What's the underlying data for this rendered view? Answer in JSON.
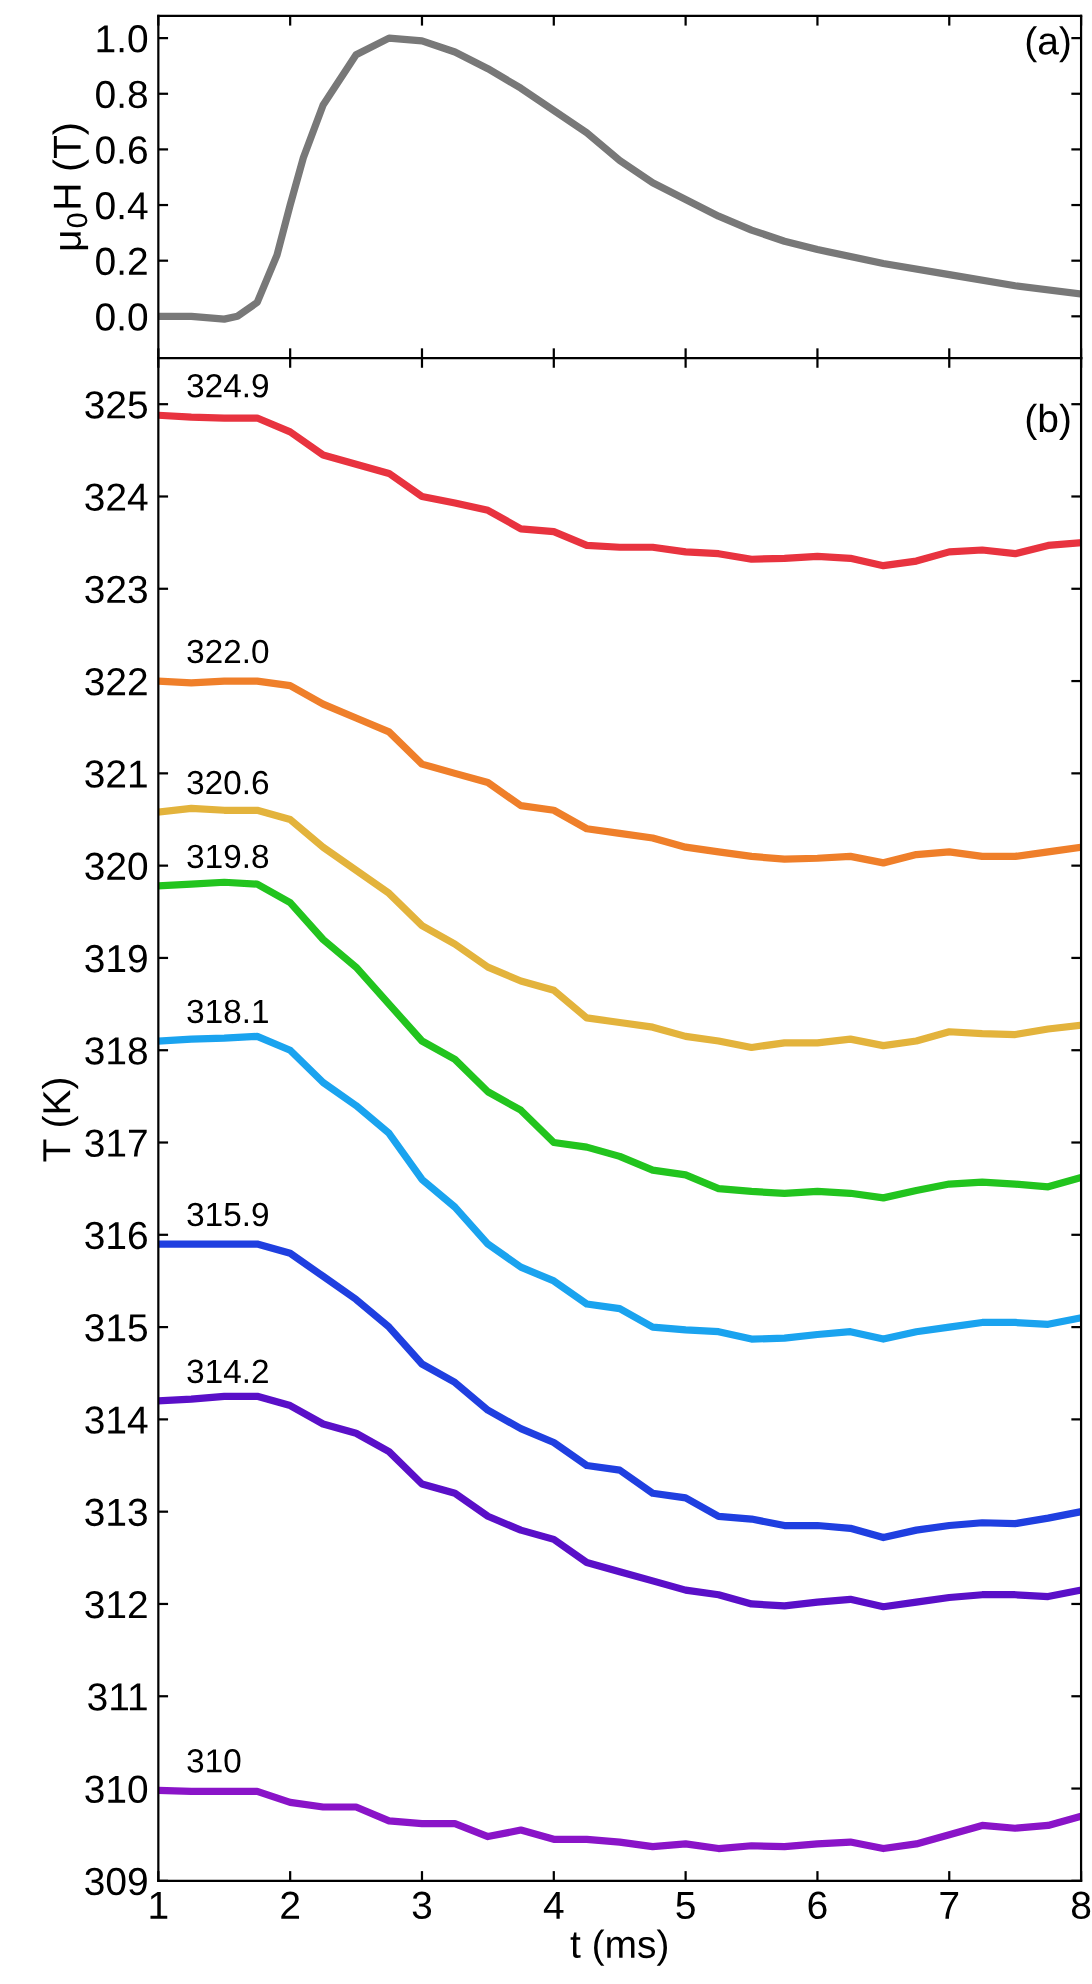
{
  "chart_data": [
    {
      "type": "line",
      "ylabel": "μ$_{0}$H (T)",
      "annotations": [
        "(a)"
      ],
      "xlim": [
        1,
        8
      ],
      "xticks": [
        1,
        2,
        3,
        4,
        5,
        6,
        7,
        8
      ],
      "ylim": [
        -0.15,
        1.08
      ],
      "yticks": [
        {
          "value": 0,
          "label": "0.0"
        },
        {
          "value": 0.2,
          "label": "0.2"
        },
        {
          "value": 0.4,
          "label": "0.4"
        },
        {
          "value": 0.6,
          "label": "0.6"
        },
        {
          "value": 0.8,
          "label": "0.8"
        },
        {
          "value": 1.0,
          "label": "1.0"
        }
      ],
      "tick_labels": "y",
      "legend": false,
      "grid": false,
      "series": [
        {
          "color": "#787878",
          "x": [
            1,
            1.25,
            1.5,
            1.6,
            1.75,
            1.9,
            2.0,
            2.1,
            2.25,
            2.5,
            2.75,
            3.0,
            3.25,
            3.5,
            3.75,
            4.0,
            4.25,
            4.5,
            4.75,
            5.0,
            5.25,
            5.5,
            5.75,
            6.0,
            6.5,
            7.0,
            7.5,
            8.0
          ],
          "values": [
            0.0,
            0.0,
            -0.01,
            0.0,
            0.05,
            0.22,
            0.4,
            0.57,
            0.76,
            0.94,
            1.0,
            0.99,
            0.95,
            0.89,
            0.82,
            0.74,
            0.66,
            0.56,
            0.48,
            0.42,
            0.36,
            0.31,
            0.27,
            0.24,
            0.19,
            0.15,
            0.11,
            0.08
          ]
        }
      ]
    },
    {
      "type": "line",
      "xlabel": "t (ms)",
      "ylabel": "T (K)",
      "annotations": [
        "(b)"
      ],
      "xlim": [
        1,
        8
      ],
      "xticks": [
        1,
        2,
        3,
        4,
        5,
        6,
        7,
        8
      ],
      "ylim": [
        309,
        325.5
      ],
      "yticks": [
        309,
        310,
        311,
        312,
        313,
        314,
        315,
        316,
        317,
        318,
        319,
        320,
        321,
        322,
        323,
        324,
        325
      ],
      "legend": false,
      "grid": false,
      "x": [
        1,
        1.25,
        1.5,
        1.75,
        2,
        2.25,
        2.5,
        2.75,
        3,
        3.25,
        3.5,
        3.75,
        4,
        4.25,
        4.5,
        4.75,
        5,
        5.25,
        5.5,
        5.75,
        6,
        6.25,
        6.5,
        6.75,
        7,
        7.25,
        7.5,
        7.75,
        8
      ],
      "series": [
        {
          "name": "324.9",
          "color": "#e8333f",
          "values": [
            324.88,
            324.86,
            324.85,
            324.85,
            324.7,
            324.45,
            324.35,
            324.25,
            324.0,
            323.93,
            323.85,
            323.65,
            323.62,
            323.47,
            323.45,
            323.45,
            323.4,
            323.38,
            323.32,
            323.33,
            323.35,
            323.33,
            323.25,
            323.3,
            323.4,
            323.42,
            323.38,
            323.47,
            323.5
          ]
        },
        {
          "name": "322.0",
          "color": "#ef7f2a",
          "values": [
            322.0,
            321.98,
            322.0,
            322.0,
            321.95,
            321.75,
            321.6,
            321.45,
            321.1,
            321.0,
            320.9,
            320.65,
            320.6,
            320.4,
            320.35,
            320.3,
            320.2,
            320.15,
            320.1,
            320.07,
            320.08,
            320.1,
            320.03,
            320.12,
            320.15,
            320.1,
            320.1,
            320.15,
            320.2
          ]
        },
        {
          "name": "320.6",
          "color": "#e3b33c",
          "values": [
            320.58,
            320.62,
            320.6,
            320.6,
            320.5,
            320.2,
            319.95,
            319.7,
            319.35,
            319.15,
            318.9,
            318.75,
            318.65,
            318.35,
            318.3,
            318.25,
            318.15,
            318.1,
            318.03,
            318.08,
            318.08,
            318.12,
            318.05,
            318.1,
            318.2,
            318.18,
            318.17,
            318.23,
            318.27
          ]
        },
        {
          "name": "319.8",
          "color": "#22c41e",
          "values": [
            319.78,
            319.8,
            319.82,
            319.8,
            319.6,
            319.2,
            318.9,
            318.5,
            318.1,
            317.9,
            317.55,
            317.35,
            317.0,
            316.95,
            316.85,
            316.7,
            316.65,
            316.5,
            316.47,
            316.45,
            316.47,
            316.45,
            316.4,
            316.48,
            316.55,
            316.57,
            316.55,
            316.52,
            316.62
          ]
        },
        {
          "name": "318.1",
          "color": "#1aa3ef",
          "values": [
            318.1,
            318.12,
            318.13,
            318.15,
            318.0,
            317.65,
            317.4,
            317.1,
            316.6,
            316.3,
            315.9,
            315.65,
            315.5,
            315.25,
            315.2,
            315.0,
            314.97,
            314.95,
            314.87,
            314.88,
            314.92,
            314.95,
            314.87,
            314.95,
            315.0,
            315.05,
            315.05,
            315.03,
            315.1
          ]
        },
        {
          "name": "315.9",
          "color": "#1f3fe0",
          "values": [
            315.9,
            315.9,
            315.9,
            315.9,
            315.8,
            315.55,
            315.3,
            315.0,
            314.6,
            314.4,
            314.1,
            313.9,
            313.75,
            313.5,
            313.45,
            313.2,
            313.15,
            312.95,
            312.92,
            312.85,
            312.85,
            312.82,
            312.72,
            312.8,
            312.85,
            312.88,
            312.87,
            312.93,
            313.0
          ]
        },
        {
          "name": "314.2",
          "color": "#5a0fc8",
          "values": [
            314.2,
            314.22,
            314.25,
            314.25,
            314.15,
            313.95,
            313.85,
            313.65,
            313.3,
            313.2,
            312.95,
            312.8,
            312.7,
            312.45,
            312.35,
            312.25,
            312.15,
            312.1,
            312.0,
            311.98,
            312.02,
            312.05,
            311.97,
            312.02,
            312.07,
            312.1,
            312.1,
            312.08,
            312.15
          ]
        },
        {
          "name": "310",
          "color": "#8a14c8",
          "values": [
            309.98,
            309.97,
            309.97,
            309.97,
            309.85,
            309.8,
            309.8,
            309.65,
            309.62,
            309.62,
            309.48,
            309.55,
            309.45,
            309.45,
            309.42,
            309.37,
            309.4,
            309.35,
            309.38,
            309.37,
            309.4,
            309.42,
            309.35,
            309.4,
            309.5,
            309.6,
            309.57,
            309.6,
            309.7
          ]
        }
      ]
    }
  ]
}
